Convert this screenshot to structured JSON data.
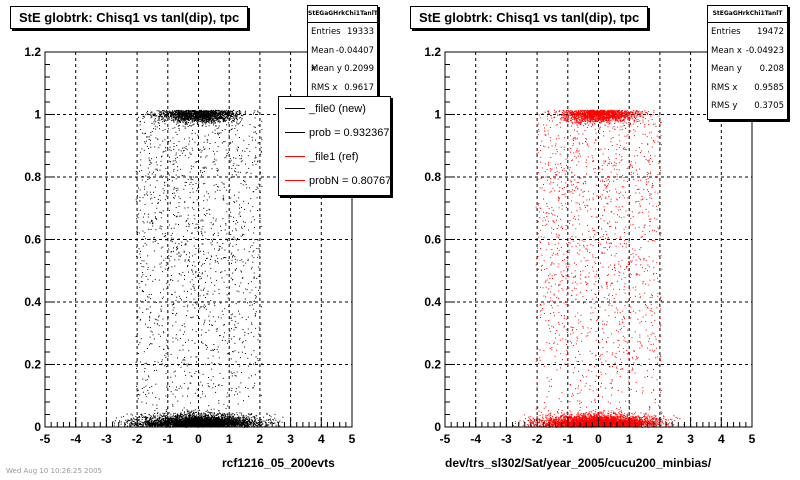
{
  "colors": {
    "left_points": "#000000",
    "right_points": "#ff0000",
    "ref_line": "#ff0000",
    "new_line": "#000000"
  },
  "chart_data": [
    {
      "type": "scatter",
      "title": "StE globtrk: Chisq1 vs tanl(dip), tpc",
      "xlabel": "rcf1216_05_200evts",
      "ylabel": "",
      "xlim": [
        -5,
        5
      ],
      "ylim": [
        0,
        1.2
      ],
      "x_ticks": [
        "-5",
        "-4",
        "-3",
        "-2",
        "-1",
        "0",
        "1",
        "2",
        "3",
        "4",
        "5"
      ],
      "y_ticks": [
        "0",
        "0.2",
        "0.4",
        "0.6",
        "0.8",
        "1",
        "1.2"
      ],
      "grid": true,
      "point_color": "#000000",
      "density_description": {
        "bands": [
          {
            "y_center": 0.03,
            "x_range": [
              -2.5,
              3.0
            ],
            "weight": "very dense"
          },
          {
            "y_center": 1.0,
            "x_range": [
              -2.0,
              2.0
            ],
            "weight": "dense"
          },
          {
            "y_range": [
              0.05,
              0.95
            ],
            "x_range": [
              -2.0,
              2.0
            ],
            "weight": "sparse"
          }
        ]
      },
      "stats": {
        "name": "StEGaGHrkChi1TanlT",
        "entries": {
          "label": "Entries",
          "value": "19333"
        },
        "mean_x": {
          "label": "Mean x",
          "value": "-0.04407"
        },
        "mean_y": {
          "label": "Mean y",
          "value": "0.2099"
        },
        "rms_x": {
          "label": "RMS x",
          "value": "0.9617"
        }
      },
      "legend": [
        {
          "label": "_file0 (new)",
          "color": "#000000"
        },
        {
          "label": "prob = 0.932367",
          "color": "#000000"
        },
        {
          "label": "_file1 (ref)",
          "color": "#ff0000"
        },
        {
          "label": "probN = 0.807672",
          "color": "#ff0000"
        }
      ]
    },
    {
      "type": "scatter",
      "title": "StE globtrk: Chisq1 vs tanl(dip), tpc",
      "xlabel": "dev/trs_sl302/Sat/year_2005/cucu200_minbias/",
      "ylabel": "",
      "xlim": [
        -5,
        5
      ],
      "ylim": [
        0,
        1.2
      ],
      "x_ticks": [
        "-5",
        "-4",
        "-3",
        "-2",
        "-1",
        "0",
        "1",
        "2",
        "3",
        "4",
        "5"
      ],
      "y_ticks": [
        "0",
        "0.2",
        "0.4",
        "0.6",
        "0.8",
        "1",
        "1.2"
      ],
      "grid": true,
      "point_color": "#ff0000",
      "stats": {
        "name": "StEGaGHrkChi1TanlT",
        "entries": {
          "label": "Entries",
          "value": "19472"
        },
        "mean_x": {
          "label": "Mean x",
          "value": "-0.04923"
        },
        "mean_y": {
          "label": "Mean y",
          "value": "0.208"
        },
        "rms_x": {
          "label": "RMS x",
          "value": "0.9585"
        },
        "rms_y": {
          "label": "RMS y",
          "value": "0.3705"
        }
      }
    }
  ],
  "footer": "Wed Aug 10 10:26:25 2005"
}
